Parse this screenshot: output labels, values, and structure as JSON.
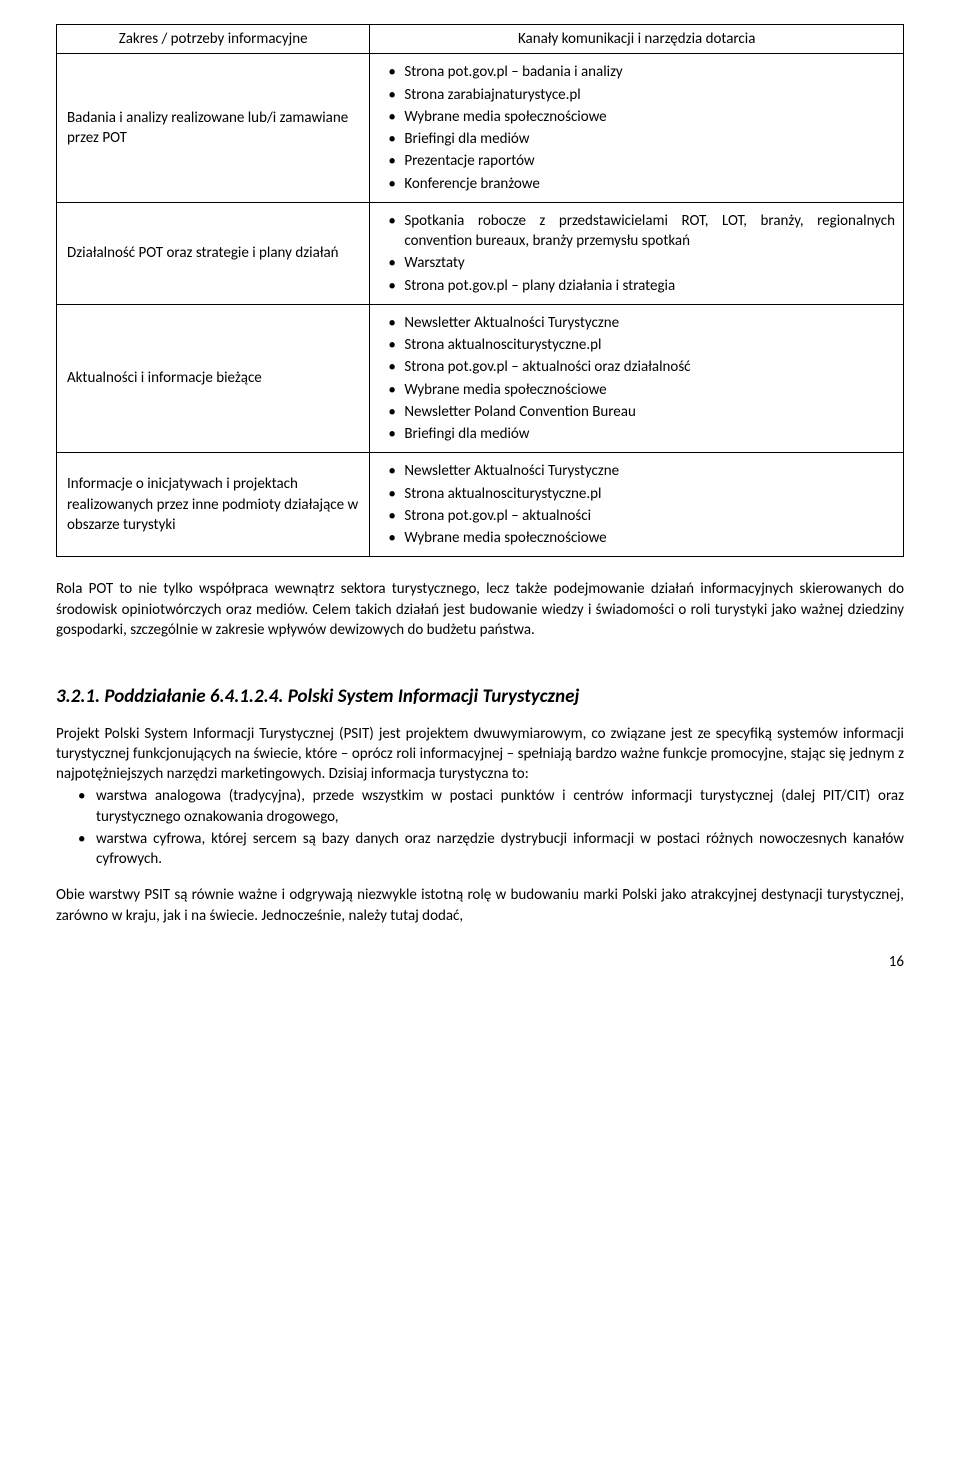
{
  "table": {
    "header_left": "Zakres / potrzeby informacyjne",
    "header_right": "Kanały komunikacji i narzędzia dotarcia",
    "rows": [
      {
        "left": "Badania i analizy realizowane lub/i zamawiane przez POT",
        "items": [
          "Strona pot.gov.pl – badania i analizy",
          "Strona zarabiajnaturystyce.pl",
          "Wybrane media społecznościowe",
          "Briefingi dla mediów",
          "Prezentacje raportów ",
          "Konferencje branżowe"
        ]
      },
      {
        "left": "Działalność POT oraz strategie i plany działań",
        "items": [
          "Spotkania robocze z przedstawicielami ROT, LOT, branży, regionalnych convention bureaux, branży przemysłu spotkań",
          "Warsztaty",
          "Strona pot.gov.pl – plany działania i strategia"
        ]
      },
      {
        "left": "Aktualności i informacje bieżące",
        "items": [
          "Newsletter Aktualności Turystyczne",
          "Strona aktualnosciturystyczne.pl",
          "Strona pot.gov.pl – aktualności oraz działalność",
          "Wybrane media społecznościowe",
          "Newsletter Poland Convention Bureau",
          "Briefingi dla mediów"
        ]
      },
      {
        "left": "Informacje o inicjatywach i projektach realizowanych przez inne podmioty działające w obszarze turystyki",
        "items": [
          "Newsletter Aktualności Turystyczne",
          "Strona aktualnosciturystyczne.pl",
          "Strona pot.gov.pl – aktualności",
          "Wybrane media społecznościowe"
        ]
      }
    ]
  },
  "para1": "Rola POT to nie tylko współpraca wewnątrz sektora turystycznego, lecz także podejmowanie działań informacyjnych skierowanych do środowisk opiniotwórczych oraz mediów. Celem takich działań jest budowanie wiedzy i świadomości o roli turystyki jako ważnej dziedziny gospodarki, szczególnie w zakresie wpływów dewizowych do budżetu państwa.",
  "section_title": "3.2.1. Poddziałanie 6.4.1.2.4. Polski System Informacji Turystycznej",
  "para2": "Projekt Polski System Informacji Turystycznej (PSIT) jest projektem dwuwymiarowym, co związane jest ze specyfiką systemów informacji turystycznej funkcjonujących na świecie, które – oprócz roli informacyjnej – spełniają bardzo ważne funkcje promocyjne, stając się jednym z najpotężniejszych narzędzi marketingowych. Dzisiaj informacja turystyczna to:",
  "list2": [
    "warstwa analogowa (tradycyjna), przede wszystkim w postaci punktów i centrów informacji turystycznej (dalej PIT/CIT) oraz turystycznego oznakowania drogowego,",
    "warstwa cyfrowa, której sercem są bazy danych oraz narzędzie dystrybucji informacji w postaci różnych nowoczesnych kanałów cyfrowych."
  ],
  "para3": "Obie warstwy PSIT są równie ważne i odgrywają niezwykle istotną rolę w budowaniu marki Polski jako atrakcyjnej destynacji turystycznej, zarówno w kraju, jak i na świecie. Jednocześnie, należy tutaj dodać,",
  "page_number": "16"
}
